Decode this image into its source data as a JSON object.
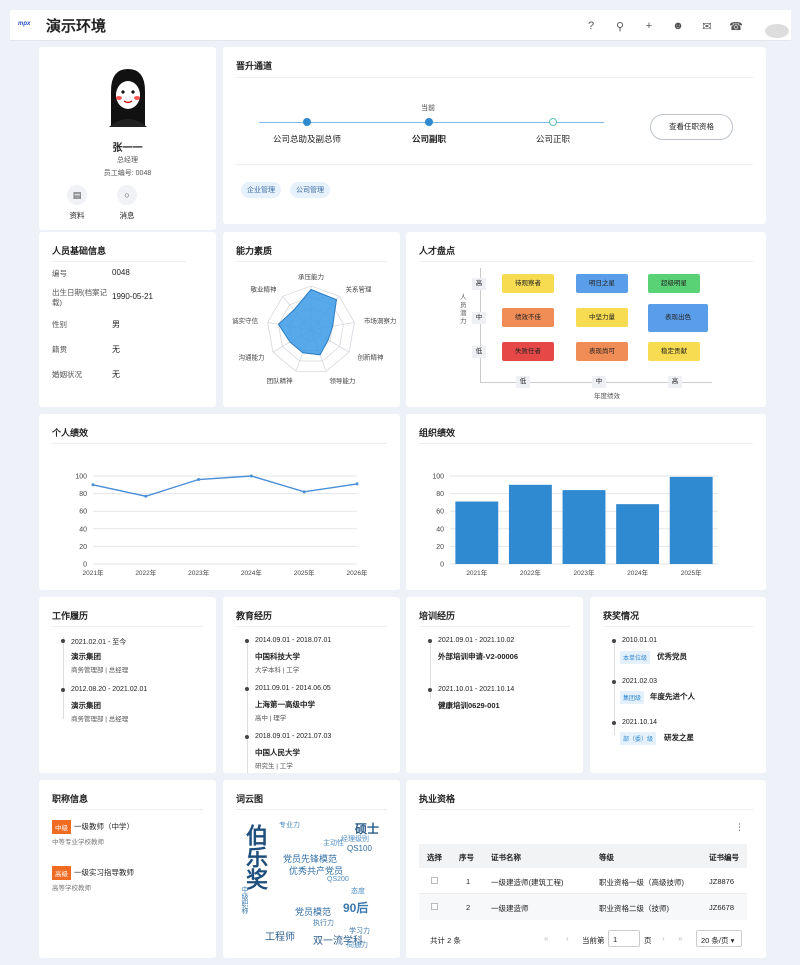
{
  "app": {
    "title": "演示环境",
    "logo": "mpx"
  },
  "topbar_icons": [
    "help-icon",
    "search-icon",
    "plus-icon",
    "users-icon",
    "mail-icon",
    "headset-icon"
  ],
  "profile": {
    "name": "张一一",
    "position": "总经理",
    "employee_no": "员工编号: 0048",
    "actions": [
      {
        "label": "资料",
        "icon": "file-icon"
      },
      {
        "label": "消息",
        "icon": "chat-icon"
      }
    ]
  },
  "promotion": {
    "title": "晋升通道",
    "current_label": "当前",
    "steps": [
      "公司总助及副总师",
      "公司副职",
      "公司正职"
    ],
    "button": "查看任职资格",
    "tags": [
      "企业管理",
      "公司管理"
    ]
  },
  "basic": {
    "title": "人员基础信息",
    "fields": [
      {
        "label": "编号",
        "value": "0048"
      },
      {
        "label": "出生日期(档案记载)",
        "value": "1990-05-21"
      },
      {
        "label": "性别",
        "value": "男"
      },
      {
        "label": "籍贯",
        "value": "无"
      },
      {
        "label": "婚姻状况",
        "value": "无"
      }
    ]
  },
  "ability": {
    "title": "能力素质",
    "axes": [
      "承压能力",
      "关系管理",
      "市场洞察力",
      "创新精神",
      "领导能力",
      "团队精神",
      "沟通能力",
      "诚实守信",
      "敬业精神"
    ]
  },
  "talent": {
    "title": "人才盘点",
    "y_label": "人员潜力",
    "x_label": "年度绩效",
    "levels_y": [
      "高",
      "中",
      "低"
    ],
    "levels_x": [
      "低",
      "中",
      "高"
    ],
    "cells": [
      {
        "text": "待观察者",
        "color": "#f7dc52"
      },
      {
        "text": "明日之星",
        "color": "#5a9ee9"
      },
      {
        "text": "超级明星",
        "color": "#59d276"
      },
      {
        "text": "绩效不佳",
        "color": "#f08c56"
      },
      {
        "text": "中坚力量",
        "color": "#f7dc52"
      },
      {
        "text": "表现出色",
        "color": "#5a9ee9"
      },
      {
        "text": "失败任者",
        "color": "#e64848"
      },
      {
        "text": "表现尚可",
        "color": "#f08c56"
      },
      {
        "text": "稳定贡献",
        "color": "#f7dc52"
      }
    ]
  },
  "personal": {
    "title": "个人绩效"
  },
  "org": {
    "title": "组织绩效"
  },
  "chart_data": [
    {
      "type": "line",
      "title": "个人绩效",
      "x": [
        "2021年",
        "2022年",
        "2023年",
        "2024年",
        "2025年",
        "2026年"
      ],
      "values": [
        90,
        77,
        96,
        100,
        82,
        91
      ],
      "ylim": [
        0,
        100
      ],
      "yticks": [
        0,
        20,
        40,
        60,
        80,
        100
      ],
      "color": "#4a8fd8"
    },
    {
      "type": "bar",
      "title": "组织绩效",
      "categories": [
        "2021年",
        "2022年",
        "2023年",
        "2024年",
        "2025年"
      ],
      "values": [
        71,
        90,
        84,
        68,
        99
      ],
      "ylim": [
        0,
        100
      ],
      "yticks": [
        0,
        20,
        40,
        60,
        80,
        100
      ],
      "color": "#2f8ad2"
    },
    {
      "type": "radar",
      "title": "能力素质",
      "axes": [
        "承压能力",
        "关系管理",
        "市场洞察力",
        "创新精神",
        "领导能力",
        "团队精神",
        "沟通能力",
        "诚实守信",
        "敬业精神"
      ],
      "values": [
        0.92,
        0.9,
        0.5,
        0.45,
        0.6,
        0.55,
        0.55,
        0.75,
        0.6
      ],
      "color": "#2f8ad2"
    }
  ],
  "work": {
    "title": "工作履历",
    "items": [
      {
        "date": "2021.02.01 - 至今",
        "org": "演示集团",
        "detail": "商务管理部 | 总经理"
      },
      {
        "date": "2012.08.20 - 2021.02.01",
        "org": "演示集团",
        "detail": "商务管理部 | 总经理"
      }
    ]
  },
  "edu": {
    "title": "教育经历",
    "items": [
      {
        "date": "2014.09.01 - 2018.07.01",
        "org": "中国科技大学",
        "detail": "大学本科 | 工学"
      },
      {
        "date": "2011.09.01 - 2014.06.05",
        "org": "上海第一高级中学",
        "detail": "高中 | 理学"
      },
      {
        "date": "2018.09.01 - 2021.07.03",
        "org": "中国人民大学",
        "detail": "研究生 | 工学"
      }
    ]
  },
  "training": {
    "title": "培训经历",
    "items": [
      {
        "date": "2021.09.01 - 2021.10.02",
        "name": "外部培训申请-V2-00006"
      },
      {
        "date": "2021.10.01 - 2021.10.14",
        "name": "健康培训0629-001"
      }
    ]
  },
  "awards": {
    "title": "获奖情况",
    "items": [
      {
        "date": "2010.01.01",
        "badge": "本单位级",
        "name": "优秀党员"
      },
      {
        "date": "2021.02.03",
        "badge": "集团级",
        "name": "年度先进个人"
      },
      {
        "date": "2021.10.14",
        "badge": "部（委）级",
        "name": "研发之星"
      }
    ]
  },
  "titles": {
    "title": "职称信息",
    "items": [
      {
        "level": "中级",
        "name": "一级教师（中学）",
        "sub": "中等专业学校教师"
      },
      {
        "level": "高级",
        "name": "一级实习指导教师",
        "sub": "高等学校教师"
      }
    ]
  },
  "wordcloud": {
    "title": "词云图",
    "words": [
      "伯乐奖",
      "党员先锋模范",
      "优秀共产党员",
      "党员模范",
      "90后",
      "硕士",
      "QS100",
      "QS200",
      "工程师",
      "双一流学科",
      "中级职称",
      "学习力",
      "执行力",
      "主动性",
      "态度",
      "专业力",
      "经理级别",
      "向通力"
    ]
  },
  "license": {
    "title": "执业资格",
    "columns": [
      "选择",
      "序号",
      "证书名称",
      "等级",
      "证书编号"
    ],
    "rows": [
      {
        "no": "1",
        "name": "一级建造师(建筑工程)",
        "level": "职业资格一级（高级技师)",
        "code": "JZ8876"
      },
      {
        "no": "2",
        "name": "一级建造师",
        "level": "职业资格二级（技师)",
        "code": "JZ6678"
      }
    ],
    "pager": {
      "total": "共计 2 条",
      "current_label": "当前第",
      "page": "1",
      "page_unit": "页",
      "page_size": "20 条/页"
    }
  }
}
